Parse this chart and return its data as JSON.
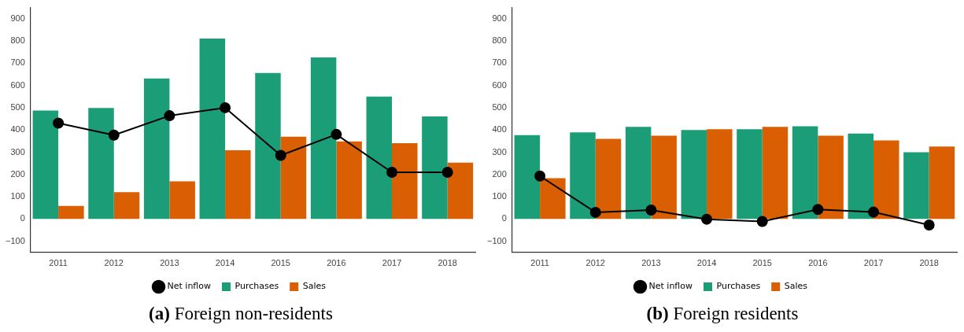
{
  "chart_data": [
    {
      "type": "bar",
      "title": "(a) Foreign non-residents",
      "categories": [
        "2011",
        "2012",
        "2013",
        "2014",
        "2015",
        "2016",
        "2017",
        "2018"
      ],
      "series": [
        {
          "name": "Net inflow",
          "type": "line",
          "color": "#000000",
          "values": [
            431,
            377,
            464,
            500,
            286,
            380,
            210,
            210
          ]
        },
        {
          "name": "Purchases",
          "color": "#1b9e77",
          "values": [
            487,
            499,
            631,
            811,
            656,
            726,
            550,
            461
          ]
        },
        {
          "name": "Sales",
          "color": "#d95f02",
          "values": [
            59,
            121,
            169,
            309,
            370,
            349,
            341,
            253
          ]
        }
      ],
      "ylim": [
        -150,
        950
      ],
      "yticks": [
        -100,
        0,
        100,
        200,
        300,
        400,
        500,
        600,
        700,
        800,
        900
      ],
      "grid": false,
      "legend": "bottom",
      "marker": "circle"
    },
    {
      "type": "bar",
      "title": "(b) Foreign residents",
      "categories": [
        "2011",
        "2012",
        "2013",
        "2014",
        "2015",
        "2016",
        "2017",
        "2018"
      ],
      "series": [
        {
          "name": "Net inflow",
          "type": "line",
          "color": "#000000",
          "values": [
            193,
            30,
            40,
            -1,
            -11,
            43,
            31,
            -27
          ]
        },
        {
          "name": "Purchases",
          "color": "#1b9e77",
          "values": [
            377,
            389,
            414,
            400,
            403,
            417,
            384,
            300
          ]
        },
        {
          "name": "Sales",
          "color": "#d95f02",
          "values": [
            183,
            360,
            374,
            403,
            414,
            374,
            353,
            326
          ]
        }
      ],
      "ylim": [
        -150,
        950
      ],
      "yticks": [
        -100,
        0,
        100,
        200,
        300,
        400,
        500,
        600,
        700,
        800,
        900
      ],
      "grid": false,
      "legend": "bottom",
      "marker": "circle"
    }
  ]
}
